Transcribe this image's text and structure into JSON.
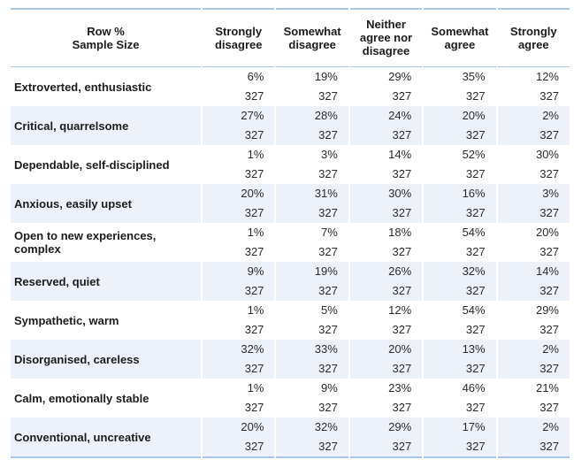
{
  "colors": {
    "border_blue": "#a9c7e9",
    "stripe": "#edf2fa",
    "text": "#1c1c1c",
    "number_text": "#2b2b2b"
  },
  "chart_data": {
    "type": "table",
    "title": "",
    "corner_header": [
      "Row %",
      "Sample Size"
    ],
    "columns": [
      "Strongly disagree",
      "Somewhat disagree",
      "Neither agree nor disagree",
      "Somewhat agree",
      "Strongly agree"
    ],
    "percent_suffix": "%",
    "rows": [
      {
        "label": "Extroverted, enthusiastic",
        "row_percent": [
          6,
          19,
          29,
          35,
          12
        ],
        "sample_size": [
          327,
          327,
          327,
          327,
          327
        ]
      },
      {
        "label": "Critical, quarrelsome",
        "row_percent": [
          27,
          28,
          24,
          20,
          2
        ],
        "sample_size": [
          327,
          327,
          327,
          327,
          327
        ]
      },
      {
        "label": "Dependable, self-disciplined",
        "row_percent": [
          1,
          3,
          14,
          52,
          30
        ],
        "sample_size": [
          327,
          327,
          327,
          327,
          327
        ]
      },
      {
        "label": "Anxious, easily upset",
        "row_percent": [
          20,
          31,
          30,
          16,
          3
        ],
        "sample_size": [
          327,
          327,
          327,
          327,
          327
        ]
      },
      {
        "label": "Open to new experiences, complex",
        "row_percent": [
          1,
          7,
          18,
          54,
          20
        ],
        "sample_size": [
          327,
          327,
          327,
          327,
          327
        ]
      },
      {
        "label": "Reserved, quiet",
        "row_percent": [
          9,
          19,
          26,
          32,
          14
        ],
        "sample_size": [
          327,
          327,
          327,
          327,
          327
        ]
      },
      {
        "label": "Sympathetic, warm",
        "row_percent": [
          1,
          5,
          12,
          54,
          29
        ],
        "sample_size": [
          327,
          327,
          327,
          327,
          327
        ]
      },
      {
        "label": "Disorganised, careless",
        "row_percent": [
          32,
          33,
          20,
          13,
          2
        ],
        "sample_size": [
          327,
          327,
          327,
          327,
          327
        ]
      },
      {
        "label": "Calm, emotionally stable",
        "row_percent": [
          1,
          9,
          23,
          46,
          21
        ],
        "sample_size": [
          327,
          327,
          327,
          327,
          327
        ]
      },
      {
        "label": "Conventional, uncreative",
        "row_percent": [
          20,
          32,
          29,
          17,
          2
        ],
        "sample_size": [
          327,
          327,
          327,
          327,
          327
        ]
      }
    ]
  }
}
